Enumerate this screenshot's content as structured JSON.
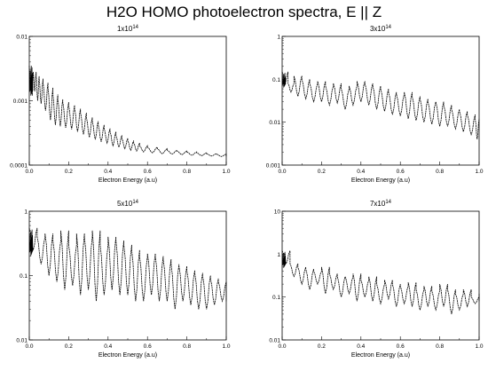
{
  "figure": {
    "title": "H2O HOMO photoelectron spectra,  E || Z"
  },
  "chart_data": [
    {
      "type": "line",
      "title": "1x10",
      "title_exponent": "14",
      "xlabel": "Electron Energy (a.u)",
      "ylabel": "",
      "yscale": "log",
      "xlim": [
        0,
        1
      ],
      "ylim": [
        0.0001,
        0.01
      ],
      "x_ticks": [
        "0.0",
        "0.2",
        "0.4",
        "0.6",
        "0.8",
        "1.0"
      ],
      "x_minor_ticks": [
        "0.1",
        "0.3",
        "0.5",
        "0.7",
        "0.9"
      ],
      "y_ticks": [
        "0.0001",
        "0.001",
        "0.01"
      ],
      "grid": false,
      "peaks": {
        "x": [
          0.0,
          0.01,
          0.02,
          0.035,
          0.05,
          0.07,
          0.095,
          0.12,
          0.145,
          0.17,
          0.2,
          0.23,
          0.26,
          0.29,
          0.32,
          0.35,
          0.38,
          0.41,
          0.44,
          0.47,
          0.5,
          0.53,
          0.56,
          0.6,
          0.65,
          0.7,
          0.75,
          0.8,
          0.85,
          0.9,
          0.95,
          1.0
        ],
        "upper": [
          0.0035,
          0.0025,
          0.0028,
          0.0024,
          0.0022,
          0.0019,
          0.0016,
          0.00125,
          0.00105,
          0.00095,
          0.00085,
          0.00075,
          0.00065,
          0.00055,
          0.00048,
          0.00042,
          0.00037,
          0.00033,
          0.00029,
          0.00026,
          0.00024,
          0.00022,
          0.0002,
          0.00019,
          0.00018,
          0.00017,
          0.000165,
          0.00016,
          0.000155,
          0.00015,
          0.000148,
          0.000145
        ],
        "lower": [
          0.0015,
          0.0012,
          0.0014,
          0.001,
          0.0009,
          0.0007,
          0.0005,
          0.00042,
          0.0004,
          0.00038,
          0.00036,
          0.00033,
          0.0003,
          0.00027,
          0.00025,
          0.00023,
          0.00022,
          0.0002,
          0.00019,
          0.00018,
          0.00017,
          0.000165,
          0.00016,
          0.000155,
          0.00015,
          0.000148,
          0.000145,
          0.000142,
          0.00014,
          0.000138,
          0.000136,
          0.000135
        ]
      }
    },
    {
      "type": "line",
      "title": "3x10",
      "title_exponent": "14",
      "xlabel": "Electron Energy (a.u)",
      "ylabel": "",
      "yscale": "log",
      "xlim": [
        0,
        1
      ],
      "ylim": [
        0.001,
        1
      ],
      "x_ticks": [
        "0.0",
        "0.2",
        "0.4",
        "0.6",
        "0.8",
        "1.0"
      ],
      "x_minor_ticks": [
        "0.1",
        "0.3",
        "0.5",
        "0.7",
        "0.9"
      ],
      "y_ticks": [
        "0.001",
        "0.01",
        "0.1",
        "1"
      ],
      "grid": false,
      "peaks": {
        "x": [
          0.0,
          0.03,
          0.06,
          0.1,
          0.14,
          0.18,
          0.22,
          0.26,
          0.3,
          0.34,
          0.38,
          0.42,
          0.46,
          0.5,
          0.54,
          0.58,
          0.62,
          0.66,
          0.7,
          0.74,
          0.78,
          0.82,
          0.86,
          0.9,
          0.94,
          0.98
        ],
        "upper": [
          0.15,
          0.08,
          0.12,
          0.1,
          0.08,
          0.09,
          0.07,
          0.08,
          0.06,
          0.07,
          0.09,
          0.08,
          0.07,
          0.06,
          0.05,
          0.045,
          0.05,
          0.04,
          0.035,
          0.03,
          0.03,
          0.025,
          0.02,
          0.018,
          0.015,
          0.012
        ],
        "lower": [
          0.08,
          0.05,
          0.04,
          0.035,
          0.03,
          0.03,
          0.025,
          0.028,
          0.02,
          0.025,
          0.03,
          0.025,
          0.02,
          0.018,
          0.015,
          0.014,
          0.012,
          0.011,
          0.01,
          0.009,
          0.008,
          0.008,
          0.007,
          0.006,
          0.005,
          0.004
        ]
      }
    },
    {
      "type": "line",
      "title": "5x10",
      "title_exponent": "14",
      "xlabel": "Electron Energy (a.u)",
      "ylabel": "",
      "yscale": "log",
      "xlim": [
        0,
        1
      ],
      "ylim": [
        0.01,
        1
      ],
      "x_ticks": [
        "0.0",
        "0.2",
        "0.4",
        "0.6",
        "0.8",
        "1.0"
      ],
      "x_minor_ticks": [
        "0.1",
        "0.3",
        "0.5",
        "0.7",
        "0.9"
      ],
      "y_ticks": [
        "0.01",
        "0.1",
        "1"
      ],
      "grid": false,
      "peaks": {
        "x": [
          0.0,
          0.04,
          0.08,
          0.12,
          0.16,
          0.2,
          0.24,
          0.28,
          0.32,
          0.36,
          0.4,
          0.44,
          0.48,
          0.52,
          0.56,
          0.6,
          0.64,
          0.68,
          0.72,
          0.76,
          0.8,
          0.84,
          0.88,
          0.92,
          0.96,
          1.0
        ],
        "upper": [
          0.55,
          0.4,
          0.45,
          0.35,
          0.5,
          0.3,
          0.45,
          0.4,
          0.5,
          0.3,
          0.4,
          0.35,
          0.3,
          0.25,
          0.2,
          0.22,
          0.2,
          0.18,
          0.15,
          0.14,
          0.12,
          0.11,
          0.1,
          0.09,
          0.08,
          0.08
        ],
        "lower": [
          0.25,
          0.15,
          0.1,
          0.08,
          0.06,
          0.07,
          0.05,
          0.06,
          0.04,
          0.05,
          0.06,
          0.05,
          0.05,
          0.04,
          0.04,
          0.05,
          0.04,
          0.04,
          0.03,
          0.04,
          0.035,
          0.03,
          0.03,
          0.035,
          0.04,
          0.04
        ]
      }
    },
    {
      "type": "line",
      "title": "7x10",
      "title_exponent": "14",
      "xlabel": "Electron Energy (a.u)",
      "ylabel": "",
      "yscale": "log",
      "xlim": [
        0,
        1
      ],
      "ylim": [
        0.01,
        10
      ],
      "x_ticks": [
        "0.0",
        "0.2",
        "0.4",
        "0.6",
        "0.8",
        "1.0"
      ],
      "x_minor_ticks": [
        "0.1",
        "0.3",
        "0.5",
        "0.7",
        "0.9"
      ],
      "y_ticks": [
        "0.01",
        "0.1",
        "1",
        "10"
      ],
      "grid": false,
      "peaks": {
        "x": [
          0.0,
          0.04,
          0.08,
          0.12,
          0.16,
          0.2,
          0.24,
          0.28,
          0.32,
          0.36,
          0.4,
          0.44,
          0.48,
          0.52,
          0.56,
          0.6,
          0.64,
          0.68,
          0.72,
          0.76,
          0.8,
          0.84,
          0.88,
          0.92,
          0.96,
          1.0
        ],
        "upper": [
          1.2,
          0.6,
          0.5,
          0.45,
          0.4,
          0.5,
          0.35,
          0.3,
          0.3,
          0.35,
          0.25,
          0.3,
          0.2,
          0.25,
          0.2,
          0.18,
          0.22,
          0.15,
          0.18,
          0.14,
          0.2,
          0.15,
          0.12,
          0.15,
          0.1,
          0.12
        ],
        "lower": [
          0.6,
          0.3,
          0.2,
          0.15,
          0.2,
          0.12,
          0.15,
          0.1,
          0.12,
          0.08,
          0.1,
          0.08,
          0.07,
          0.09,
          0.06,
          0.07,
          0.06,
          0.05,
          0.06,
          0.05,
          0.06,
          0.04,
          0.05,
          0.06,
          0.07,
          0.08
        ]
      }
    }
  ]
}
